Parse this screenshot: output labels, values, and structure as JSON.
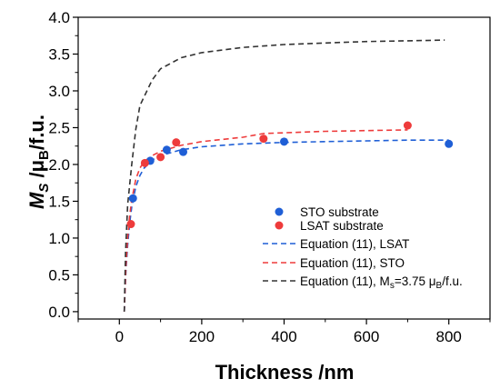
{
  "chart_data": {
    "type": "scatter",
    "title": "",
    "xlabel": "Thickness /nm",
    "ylabel": "MS /μB/f.u.",
    "ylabel_parts": {
      "main": "M",
      "sub1": "S",
      "mid": " /μ",
      "sub2": "B",
      "tail": "/f.u."
    },
    "xlim": [
      -100,
      900
    ],
    "ylim": [
      -0.1,
      4.0
    ],
    "xticks": [
      0,
      200,
      400,
      600,
      800
    ],
    "yticks": [
      0.0,
      0.5,
      1.0,
      1.5,
      2.0,
      2.5,
      3.0,
      3.5,
      4.0
    ],
    "xtick_labels": [
      "0",
      "200",
      "400",
      "600",
      "800"
    ],
    "ytick_labels": [
      "0.0",
      "0.5",
      "1.0",
      "1.5",
      "2.0",
      "2.5",
      "3.0",
      "3.5",
      "4.0"
    ],
    "grid": false,
    "legend_position": "center-right",
    "series": [
      {
        "name": "STO substrate",
        "kind": "scatter",
        "color": "#1f5fd6",
        "x": [
          33,
          75,
          115,
          155,
          400,
          800
        ],
        "y": [
          1.54,
          2.05,
          2.2,
          2.17,
          2.31,
          2.28
        ]
      },
      {
        "name": "LSAT substrate",
        "kind": "scatter",
        "color": "#ee3b3b",
        "x": [
          28,
          62,
          100,
          138,
          350,
          700
        ],
        "y": [
          1.19,
          2.02,
          2.1,
          2.3,
          2.35,
          2.53
        ]
      },
      {
        "name": "Equation (11), LSAT",
        "kind": "line",
        "dash": true,
        "color": "#1f5fd6",
        "x": [
          12,
          16,
          20,
          25,
          30,
          40,
          50,
          60,
          80,
          100,
          150,
          200,
          300,
          400,
          500,
          600,
          700,
          800
        ],
        "y": [
          0.0,
          0.55,
          0.9,
          1.2,
          1.42,
          1.7,
          1.85,
          1.95,
          2.06,
          2.12,
          2.2,
          2.24,
          2.28,
          2.3,
          2.31,
          2.32,
          2.33,
          2.33
        ]
      },
      {
        "name": "Equation (11), STO",
        "kind": "line",
        "dash": true,
        "color": "#ee3b3b",
        "x": [
          12,
          16,
          20,
          25,
          30,
          40,
          50,
          60,
          80,
          100,
          150,
          200,
          300,
          350,
          400,
          500,
          600,
          700
        ],
        "y": [
          0.0,
          0.6,
          1.0,
          1.3,
          1.52,
          1.8,
          1.95,
          2.04,
          2.12,
          2.18,
          2.26,
          2.31,
          2.37,
          2.42,
          2.43,
          2.45,
          2.46,
          2.47
        ]
      },
      {
        "name": "Equation (11), Ms=3.75 μB/f.u.",
        "kind": "line",
        "dash": true,
        "color": "#333333",
        "x": [
          12,
          15,
          20,
          30,
          40,
          50,
          60,
          80,
          100,
          150,
          200,
          300,
          400,
          500,
          600,
          700,
          790
        ],
        "y": [
          0.0,
          0.8,
          1.45,
          2.0,
          2.48,
          2.8,
          2.92,
          3.15,
          3.3,
          3.45,
          3.52,
          3.59,
          3.63,
          3.65,
          3.67,
          3.68,
          3.69
        ]
      }
    ],
    "legend_label_parts": {
      "eq_ms": {
        "prefix": "Equation (11), M",
        "sub1": "s",
        "mid": "=3.75 μ",
        "sub2": "B",
        "tail": "/f.u."
      }
    }
  }
}
